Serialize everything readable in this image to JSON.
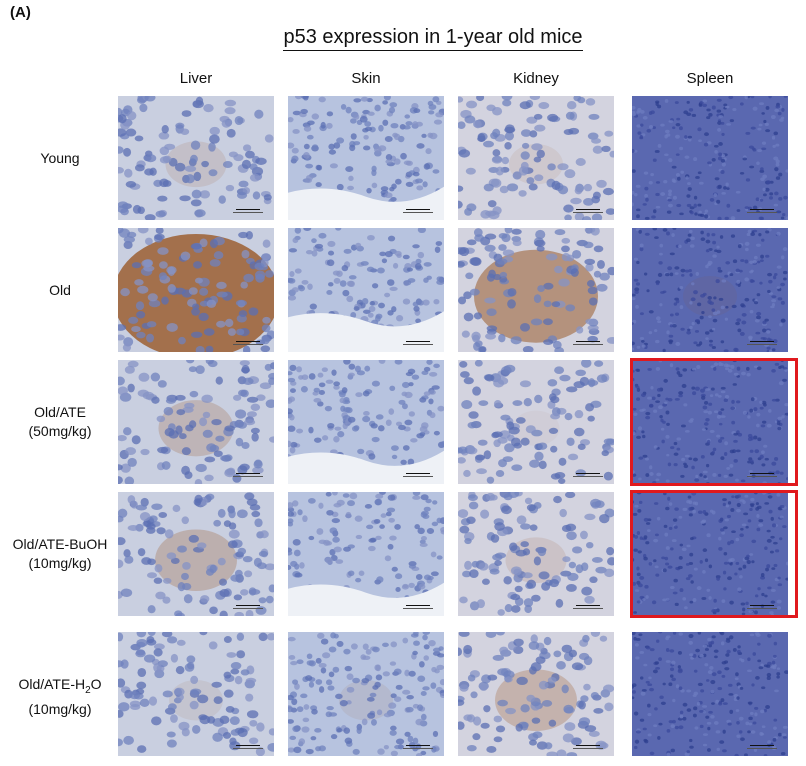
{
  "figure": {
    "panel_label": "(A)",
    "title": "p53 expression in 1-year old mice",
    "columns": [
      "Liver",
      "Skin",
      "Kidney",
      "Spleen"
    ],
    "rows": [
      {
        "label": "Young",
        "label_line2": ""
      },
      {
        "label": "Old",
        "label_line2": ""
      },
      {
        "label": "Old/ATE",
        "label_line2": "(50mg/kg)"
      },
      {
        "label": "Old/ATE-BuOH",
        "label_line2": "(10mg/kg)"
      },
      {
        "label": "Old/ATE-H",
        "label_sub": "2",
        "label_tail": "O",
        "label_line2": "(10mg/kg)"
      }
    ],
    "highlight_color": "#e0191e",
    "tiles": [
      [
        {
          "tissue": "liver",
          "stain": 0.15
        },
        {
          "tissue": "skin",
          "stain": 0.0
        },
        {
          "tissue": "kidney",
          "stain": 0.1
        },
        {
          "tissue": "spleen",
          "stain": 0.0
        }
      ],
      [
        {
          "tissue": "liver",
          "stain": 0.9
        },
        {
          "tissue": "skin",
          "stain": 0.0
        },
        {
          "tissue": "kidney",
          "stain": 0.6
        },
        {
          "tissue": "spleen",
          "stain": 0.1
        }
      ],
      [
        {
          "tissue": "liver",
          "stain": 0.25
        },
        {
          "tissue": "skin",
          "stain": 0.0
        },
        {
          "tissue": "kidney",
          "stain": 0.05
        },
        {
          "tissue": "spleen",
          "stain": 0.0,
          "highlighted": true
        }
      ],
      [
        {
          "tissue": "liver",
          "stain": 0.3
        },
        {
          "tissue": "skin",
          "stain": 0.0
        },
        {
          "tissue": "kidney",
          "stain": 0.15
        },
        {
          "tissue": "spleen",
          "stain": 0.0,
          "highlighted": true
        }
      ],
      [
        {
          "tissue": "liver",
          "stain": 0.1
        },
        {
          "tissue": "skin",
          "stain": 0.1
        },
        {
          "tissue": "kidney",
          "stain": 0.3
        },
        {
          "tissue": "spleen",
          "stain": 0.0
        }
      ]
    ]
  }
}
